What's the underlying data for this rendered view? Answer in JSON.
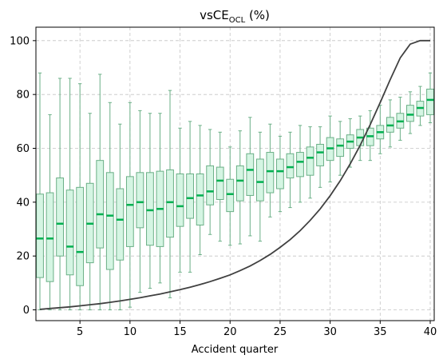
{
  "chart_data": {
    "type": "box",
    "title": "vsCE",
    "title_subscript": "OCL",
    "title_suffix": " (%)",
    "xlabel": "Accident quarter",
    "ylabel": "",
    "xlim": [
      0.6,
      40.4
    ],
    "ylim": [
      -4,
      105
    ],
    "xticks": [
      5,
      10,
      15,
      20,
      25,
      30,
      35,
      40
    ],
    "yticks": [
      0,
      20,
      40,
      60,
      80,
      100
    ],
    "grid": true,
    "colors": {
      "box_fill": "#d5f5e3",
      "box_edge": "#6aaf86",
      "median": "#00b050",
      "line": "#404040",
      "grid": "#c4c4c4"
    },
    "boxes": [
      {
        "x": 1,
        "whislo": 0,
        "q1": 12,
        "med": 26.5,
        "q3": 43,
        "whishi": 88
      },
      {
        "x": 2,
        "whislo": 0,
        "q1": 10.5,
        "med": 26.5,
        "q3": 43.5,
        "whishi": 72.5
      },
      {
        "x": 3,
        "whislo": 0,
        "q1": 20,
        "med": 32,
        "q3": 49,
        "whishi": 86
      },
      {
        "x": 4,
        "whislo": 0,
        "q1": 13,
        "med": 23.5,
        "q3": 44.5,
        "whishi": 86
      },
      {
        "x": 5,
        "whislo": 0,
        "q1": 9,
        "med": 21.5,
        "q3": 45.5,
        "whishi": 84
      },
      {
        "x": 6,
        "whislo": 0,
        "q1": 17.5,
        "med": 32,
        "q3": 47,
        "whishi": 73
      },
      {
        "x": 7,
        "whislo": 0,
        "q1": 23,
        "med": 35.5,
        "q3": 55.5,
        "whishi": 87.5
      },
      {
        "x": 8,
        "whislo": 0,
        "q1": 15,
        "med": 35,
        "q3": 51,
        "whishi": 77
      },
      {
        "x": 9,
        "whislo": 0,
        "q1": 18.5,
        "med": 33.5,
        "q3": 45,
        "whishi": 69
      },
      {
        "x": 10,
        "whislo": 1,
        "q1": 23.5,
        "med": 39,
        "q3": 49.5,
        "whishi": 77
      },
      {
        "x": 11,
        "whislo": 6.5,
        "q1": 30.5,
        "med": 40,
        "q3": 51,
        "whishi": 74
      },
      {
        "x": 12,
        "whislo": 8,
        "q1": 24,
        "med": 37,
        "q3": 51,
        "whishi": 73
      },
      {
        "x": 13,
        "whislo": 10,
        "q1": 23.5,
        "med": 37.5,
        "q3": 51.5,
        "whishi": 73
      },
      {
        "x": 14,
        "whislo": 4.5,
        "q1": 27,
        "med": 40,
        "q3": 52,
        "whishi": 81.5
      },
      {
        "x": 15,
        "whislo": 14,
        "q1": 31,
        "med": 38.5,
        "q3": 50.5,
        "whishi": 67.5
      },
      {
        "x": 16,
        "whislo": 14,
        "q1": 34,
        "med": 41.5,
        "q3": 50.5,
        "whishi": 70
      },
      {
        "x": 17,
        "whislo": 20.5,
        "q1": 31.5,
        "med": 42.5,
        "q3": 50.5,
        "whishi": 68.5
      },
      {
        "x": 18,
        "whislo": 28,
        "q1": 39,
        "med": 44,
        "q3": 53.5,
        "whishi": 67
      },
      {
        "x": 19,
        "whislo": 25.5,
        "q1": 41,
        "med": 48,
        "q3": 53,
        "whishi": 66
      },
      {
        "x": 20,
        "whislo": 24,
        "q1": 36.5,
        "med": 43,
        "q3": 48.5,
        "whishi": 60.5
      },
      {
        "x": 21,
        "whislo": 24.5,
        "q1": 40.5,
        "med": 48,
        "q3": 53.5,
        "whishi": 66.5
      },
      {
        "x": 22,
        "whislo": 27.5,
        "q1": 42.5,
        "med": 52,
        "q3": 58,
        "whishi": 71.5
      },
      {
        "x": 23,
        "whislo": 25.5,
        "q1": 40.5,
        "med": 47.5,
        "q3": 56,
        "whishi": 66
      },
      {
        "x": 24,
        "whislo": 34.5,
        "q1": 43.5,
        "med": 51.5,
        "q3": 58.5,
        "whishi": 69
      },
      {
        "x": 25,
        "whislo": 36.5,
        "q1": 45,
        "med": 51.5,
        "q3": 56,
        "whishi": 64.5
      },
      {
        "x": 26,
        "whislo": 38,
        "q1": 49,
        "med": 53,
        "q3": 58,
        "whishi": 66
      },
      {
        "x": 27,
        "whislo": 40,
        "q1": 49.5,
        "med": 55,
        "q3": 58.5,
        "whishi": 68.5
      },
      {
        "x": 28,
        "whislo": 41.5,
        "q1": 50,
        "med": 56.5,
        "q3": 60.5,
        "whishi": 68
      },
      {
        "x": 29,
        "whislo": 45.5,
        "q1": 53.5,
        "med": 58.5,
        "q3": 61.5,
        "whishi": 68
      },
      {
        "x": 30,
        "whislo": 47.5,
        "q1": 55.5,
        "med": 60,
        "q3": 64,
        "whishi": 72
      },
      {
        "x": 31,
        "whislo": 50,
        "q1": 57,
        "med": 61,
        "q3": 63.5,
        "whishi": 70
      },
      {
        "x": 32,
        "whislo": 53,
        "q1": 60,
        "med": 62.5,
        "q3": 65,
        "whishi": 71
      },
      {
        "x": 33,
        "whislo": 55.5,
        "q1": 61,
        "med": 64,
        "q3": 67,
        "whishi": 72
      },
      {
        "x": 34,
        "whislo": 55.5,
        "q1": 61,
        "med": 64.5,
        "q3": 67.5,
        "whishi": 74
      },
      {
        "x": 35,
        "whislo": 58,
        "q1": 63.5,
        "med": 66,
        "q3": 68.5,
        "whishi": 76
      },
      {
        "x": 36,
        "whislo": 60.5,
        "q1": 66,
        "med": 68.5,
        "q3": 71.5,
        "whishi": 78
      },
      {
        "x": 37,
        "whislo": 63,
        "q1": 67.5,
        "med": 70,
        "q3": 73,
        "whishi": 79
      },
      {
        "x": 38,
        "whislo": 65.5,
        "q1": 70,
        "med": 72.5,
        "q3": 76,
        "whishi": 81
      },
      {
        "x": 39,
        "whislo": 68.5,
        "q1": 72,
        "med": 75,
        "q3": 77.5,
        "whishi": 83
      },
      {
        "x": 40,
        "whislo": 69.5,
        "q1": 72.5,
        "med": 78,
        "q3": 82,
        "whishi": 88
      }
    ],
    "line": {
      "x": [
        1,
        2,
        3,
        4,
        5,
        6,
        7,
        8,
        9,
        10,
        11,
        12,
        13,
        14,
        15,
        16,
        17,
        18,
        19,
        20,
        21,
        22,
        23,
        24,
        25,
        26,
        27,
        28,
        29,
        30,
        31,
        32,
        33,
        34,
        35,
        36,
        37,
        38,
        39,
        40
      ],
      "y": [
        0.2,
        0.5,
        0.8,
        1.1,
        1.5,
        1.9,
        2.3,
        2.8,
        3.3,
        3.9,
        4.5,
        5.2,
        5.9,
        6.7,
        7.5,
        8.4,
        9.4,
        10.5,
        11.7,
        13,
        14.6,
        16.3,
        18.3,
        20.6,
        23.2,
        26.1,
        29.4,
        33.2,
        37.5,
        42.4,
        47.9,
        54.2,
        61.1,
        68.8,
        77,
        85.5,
        93.6,
        98.7,
        100,
        100
      ]
    }
  }
}
